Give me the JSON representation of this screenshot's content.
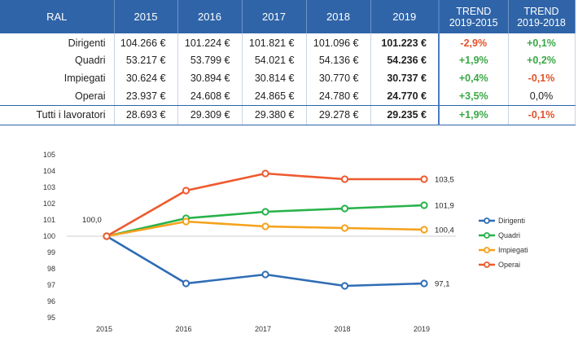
{
  "table": {
    "header": {
      "label": "RAL",
      "years": [
        "2015",
        "2016",
        "2017",
        "2018",
        "2019"
      ],
      "trend1": [
        "TREND",
        "2019-2015"
      ],
      "trend2": [
        "TREND",
        "2019-2018"
      ]
    },
    "rows": [
      {
        "label": "Dirigenti",
        "values": [
          "104.266 €",
          "101.224 €",
          "101.821 €",
          "101.096 €",
          "101.223 €"
        ],
        "trend1": "-2,9%",
        "trend1_sign": "neg",
        "trend2": "+0,1%",
        "trend2_sign": "pos"
      },
      {
        "label": "Quadri",
        "values": [
          "53.217 €",
          "53.799 €",
          "54.021 €",
          "54.136 €",
          "54.236 €"
        ],
        "trend1": "+1,9%",
        "trend1_sign": "pos",
        "trend2": "+0,2%",
        "trend2_sign": "pos"
      },
      {
        "label": "Impiegati",
        "values": [
          "30.624 €",
          "30.894 €",
          "30.814 €",
          "30.770 €",
          "30.737 €"
        ],
        "trend1": "+0,4%",
        "trend1_sign": "pos",
        "trend2": "-0,1%",
        "trend2_sign": "neg"
      },
      {
        "label": "Operai",
        "values": [
          "23.937 €",
          "24.608 €",
          "24.865 €",
          "24.780 €",
          "24.770 €"
        ],
        "trend1": "+3,5%",
        "trend1_sign": "pos",
        "trend2": "0,0%",
        "trend2_sign": "neu"
      },
      {
        "label": "Tutti i lavoratori",
        "values": [
          "28.693 €",
          "29.309 €",
          "29.380 €",
          "29.278 €",
          "29.235 €"
        ],
        "trend1": "+1,9%",
        "trend1_sign": "pos",
        "trend2": "-0,1%",
        "trend2_sign": "neg"
      }
    ]
  },
  "colors": {
    "header_bg": "#2f64a8",
    "positive": "#3aa845",
    "negative": "#e1532b"
  },
  "chart_data": {
    "type": "line",
    "x": [
      "2015",
      "2016",
      "2017",
      "2018",
      "2019"
    ],
    "ylim": [
      95,
      105
    ],
    "yticks": [
      "95",
      "96",
      "97",
      "98",
      "99",
      "100",
      "101",
      "102",
      "103",
      "104",
      "105"
    ],
    "grid": false,
    "reference_line": 100,
    "legend": "right",
    "series": [
      {
        "name": "Dirigenti",
        "color": "#2f6db5",
        "values": [
          100,
          97.1,
          97.65,
          96.95,
          97.1
        ],
        "end_label": "97,1"
      },
      {
        "name": "Quadri",
        "color": "#27b24a",
        "values": [
          100,
          101.1,
          101.5,
          101.7,
          101.9
        ],
        "end_label": "101,9"
      },
      {
        "name": "Impiegati",
        "color": "#f5a21b",
        "values": [
          100,
          100.9,
          100.6,
          100.5,
          100.4
        ],
        "end_label": "100,4"
      },
      {
        "name": "Operai",
        "color": "#ee5a2f",
        "values": [
          100,
          102.8,
          103.85,
          103.5,
          103.5
        ],
        "end_label": "103,5"
      }
    ],
    "start_label": "100,0"
  }
}
